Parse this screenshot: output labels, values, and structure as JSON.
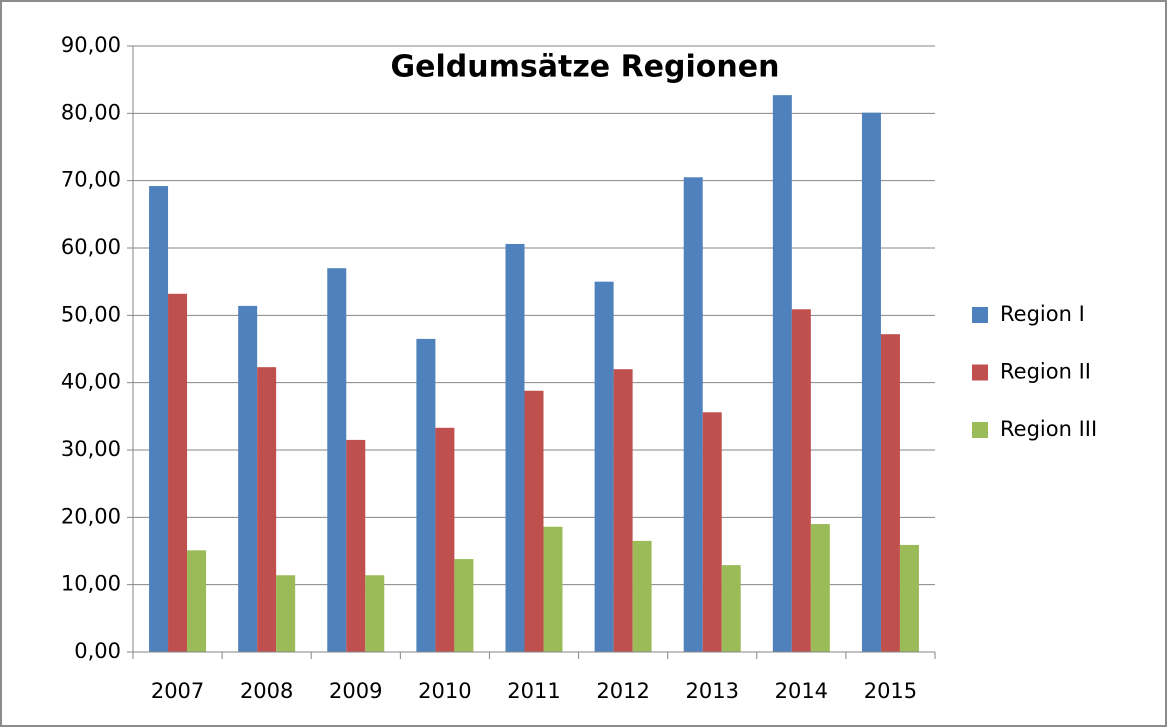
{
  "chart_data": {
    "type": "bar",
    "title": "Geldumsätze Regionen",
    "categories": [
      "2007",
      "2008",
      "2009",
      "2010",
      "2011",
      "2012",
      "2013",
      "2014",
      "2015"
    ],
    "series": [
      {
        "name": "Region I",
        "color": "#4f81bd",
        "values": [
          69.2,
          51.4,
          57.0,
          46.5,
          60.6,
          55.0,
          70.5,
          82.7,
          80.1
        ]
      },
      {
        "name": "Region II",
        "color": "#c0504d",
        "values": [
          53.2,
          42.3,
          31.5,
          33.3,
          38.8,
          42.0,
          35.6,
          50.9,
          47.2
        ]
      },
      {
        "name": "Region III",
        "color": "#9bbb59",
        "values": [
          15.1,
          11.4,
          11.4,
          13.8,
          18.6,
          16.5,
          12.9,
          19.0,
          15.9
        ]
      }
    ],
    "ylim": [
      0,
      90
    ],
    "yticks": [
      {
        "value": 0,
        "label": "0,00"
      },
      {
        "value": 10,
        "label": "10,00"
      },
      {
        "value": 20,
        "label": "20,00"
      },
      {
        "value": 30,
        "label": "30,00"
      },
      {
        "value": 40,
        "label": "40,00"
      },
      {
        "value": 50,
        "label": "50,00"
      },
      {
        "value": 60,
        "label": "60,00"
      },
      {
        "value": 70,
        "label": "70,00"
      },
      {
        "value": 80,
        "label": "80,00"
      },
      {
        "value": 90,
        "label": "90,00"
      }
    ],
    "grid": true,
    "legend": "right"
  }
}
